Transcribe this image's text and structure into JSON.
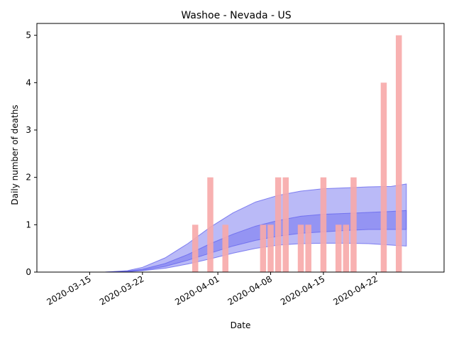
{
  "chart_data": {
    "type": "bar",
    "title": "Washoe - Nevada - US",
    "xlabel": "Date",
    "ylabel": "Daily number of deaths",
    "x_tick_labels": [
      "2020-03-15",
      "2020-03-22",
      "2020-04-01",
      "2020-04-08",
      "2020-04-15",
      "2020-04-22"
    ],
    "x_tick_dates": [
      "2020-03-15",
      "2020-03-22",
      "2020-04-01",
      "2020-04-08",
      "2020-04-15",
      "2020-04-22"
    ],
    "xlim": [
      "2020-03-08",
      "2020-05-01"
    ],
    "ylim": [
      0,
      5.25
    ],
    "y_ticks": [
      0,
      1,
      2,
      3,
      4,
      5
    ],
    "grid": false,
    "bar_color": "#f7a8a8",
    "band_color": "#6666ee",
    "deaths": {
      "dates": [
        "2020-03-29",
        "2020-03-31",
        "2020-04-02",
        "2020-04-07",
        "2020-04-08",
        "2020-04-09",
        "2020-04-10",
        "2020-04-12",
        "2020-04-13",
        "2020-04-15",
        "2020-04-17",
        "2020-04-18",
        "2020-04-19",
        "2020-04-23",
        "2020-04-25"
      ],
      "values": [
        1,
        2,
        1,
        1,
        1,
        2,
        2,
        1,
        1,
        2,
        1,
        1,
        2,
        4,
        5
      ]
    },
    "model_outer_band": {
      "dates": [
        "2020-03-17",
        "2020-03-20",
        "2020-03-22",
        "2020-03-25",
        "2020-03-28",
        "2020-03-31",
        "2020-04-03",
        "2020-04-06",
        "2020-04-09",
        "2020-04-12",
        "2020-04-15",
        "2020-04-18",
        "2020-04-21",
        "2020-04-24",
        "2020-04-26"
      ],
      "lower": [
        0,
        0.01,
        0.03,
        0.08,
        0.17,
        0.28,
        0.4,
        0.5,
        0.57,
        0.6,
        0.61,
        0.61,
        0.6,
        0.57,
        0.55
      ],
      "upper": [
        0,
        0.03,
        0.1,
        0.3,
        0.6,
        0.95,
        1.25,
        1.48,
        1.62,
        1.71,
        1.76,
        1.78,
        1.8,
        1.81,
        1.86
      ]
    },
    "model_inner_band": {
      "dates": [
        "2020-03-17",
        "2020-03-20",
        "2020-03-22",
        "2020-03-25",
        "2020-03-28",
        "2020-03-31",
        "2020-04-03",
        "2020-04-06",
        "2020-04-09",
        "2020-04-12",
        "2020-04-15",
        "2020-04-18",
        "2020-04-21",
        "2020-04-24",
        "2020-04-26"
      ],
      "lower": [
        0,
        0.01,
        0.04,
        0.12,
        0.25,
        0.4,
        0.55,
        0.67,
        0.76,
        0.82,
        0.85,
        0.88,
        0.9,
        0.9,
        0.9
      ],
      "upper": [
        0,
        0.02,
        0.06,
        0.18,
        0.37,
        0.6,
        0.8,
        0.97,
        1.09,
        1.18,
        1.22,
        1.24,
        1.26,
        1.28,
        1.3
      ]
    }
  }
}
